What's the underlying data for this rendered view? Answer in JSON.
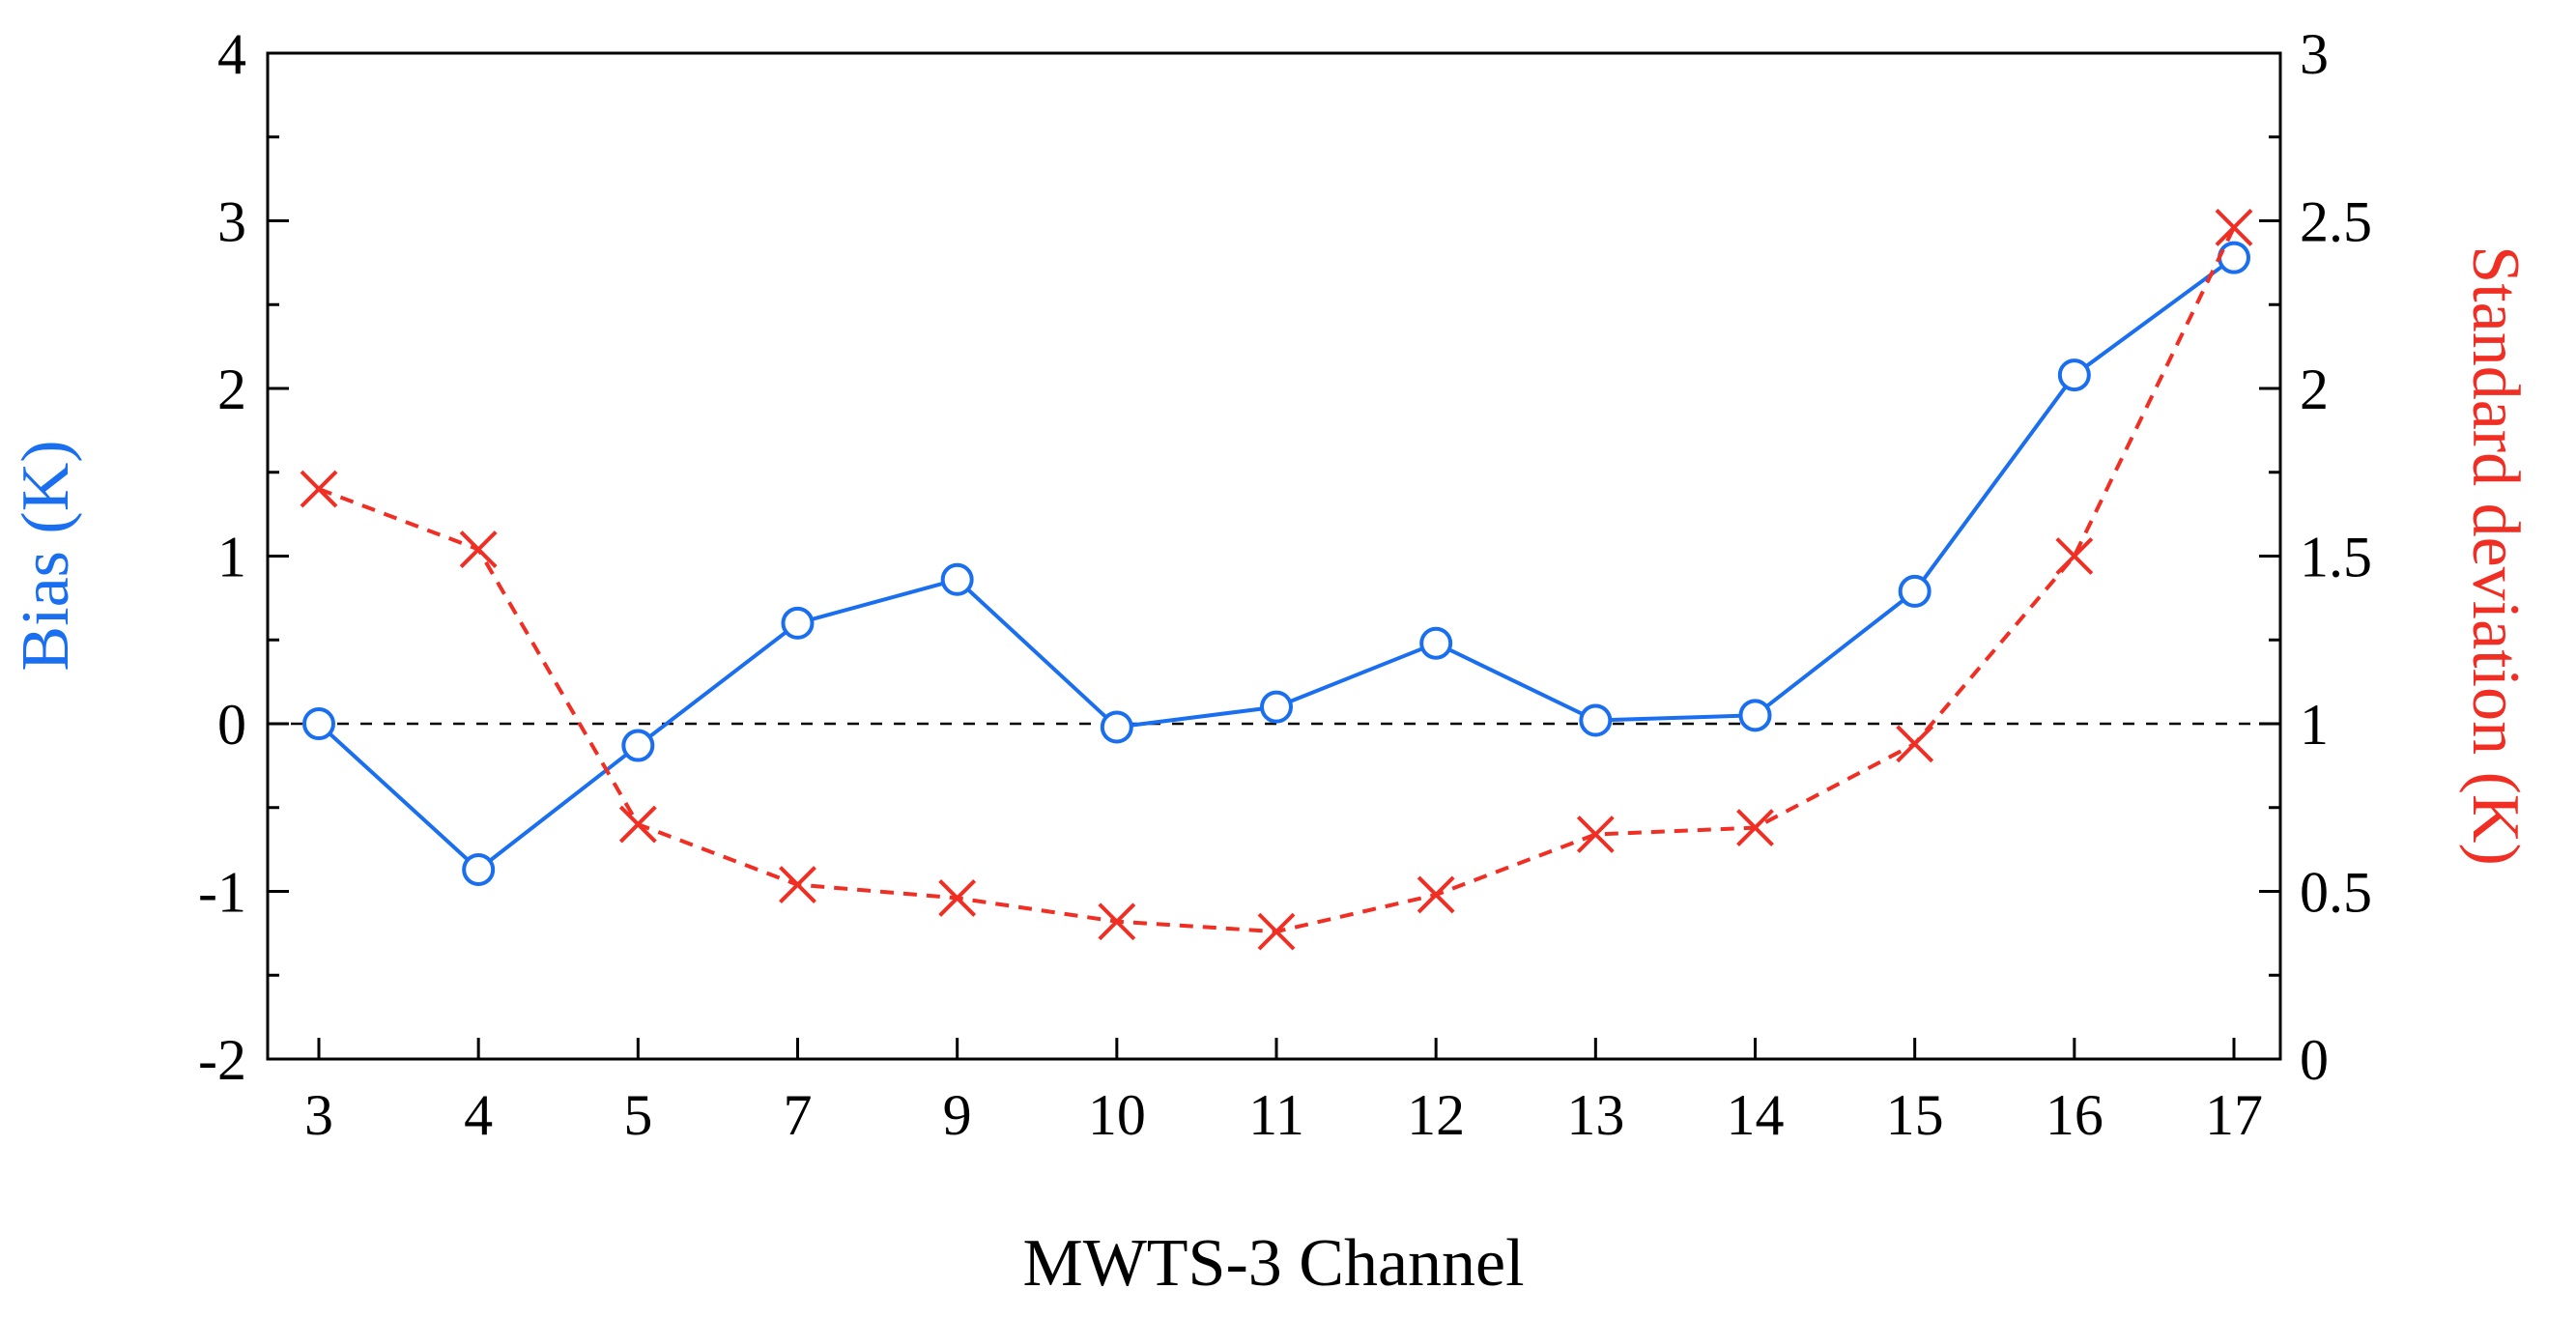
{
  "chart_data": {
    "type": "line",
    "xlabel": "MWTS-3 Channel",
    "categories": [
      "3",
      "4",
      "5",
      "7",
      "9",
      "10",
      "11",
      "12",
      "13",
      "14",
      "15",
      "16",
      "17"
    ],
    "y_left": {
      "label": "Bias (K)",
      "range": [
        -2,
        4
      ],
      "ticks": [
        "-2",
        "-1",
        "0",
        "1",
        "2",
        "3",
        "4"
      ]
    },
    "y_right": {
      "label": "Standard deviation (K)",
      "range": [
        0,
        3
      ],
      "ticks": [
        "0",
        "0.5",
        "1",
        "1.5",
        "2",
        "2.5",
        "3"
      ]
    },
    "reference_line": {
      "axis": "left",
      "value": 0,
      "style": "dashed",
      "color": "#000000"
    },
    "series": [
      {
        "name": "Bias",
        "axis": "left",
        "color": "#1a6ef0",
        "marker": "circle",
        "line": "solid",
        "values": [
          0.0,
          -0.87,
          -0.13,
          0.6,
          0.86,
          -0.02,
          0.1,
          0.48,
          0.02,
          0.05,
          0.79,
          2.08,
          2.78
        ]
      },
      {
        "name": "Standard deviation",
        "axis": "right",
        "color": "#f02e23",
        "marker": "x",
        "line": "dashed",
        "values": [
          1.7,
          1.52,
          0.7,
          0.52,
          0.48,
          0.41,
          0.38,
          0.49,
          0.67,
          0.69,
          0.94,
          1.5,
          2.48
        ]
      }
    ]
  }
}
